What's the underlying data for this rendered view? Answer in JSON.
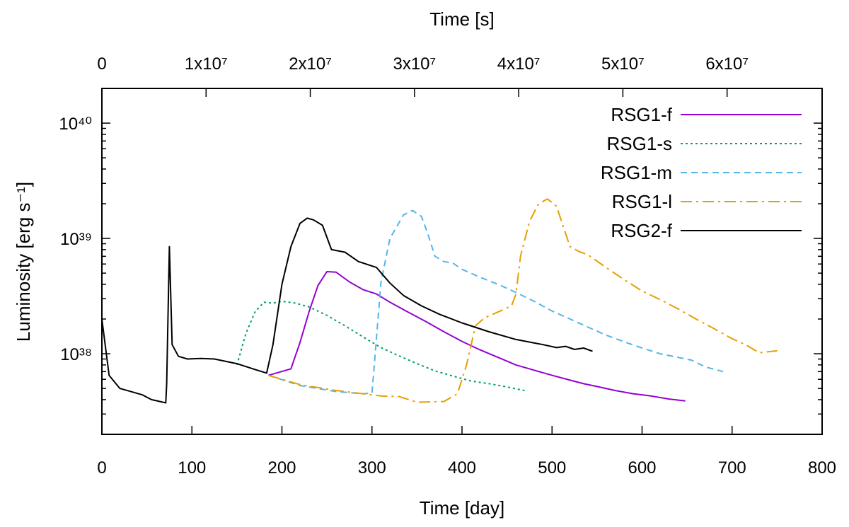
{
  "chart_data": {
    "type": "line",
    "xlabel": "Time [day]",
    "ylabel": "Luminosity [erg s⁻¹]",
    "x2label": "Time [s]",
    "xlim": [
      0,
      800
    ],
    "ylim": [
      2e+37,
      2e+40
    ],
    "yscale": "log",
    "x_ticks": [
      0,
      100,
      200,
      300,
      400,
      500,
      600,
      700,
      800
    ],
    "x_tick_labels": [
      "0",
      "100",
      "200",
      "300",
      "400",
      "500",
      "600",
      "700",
      "800"
    ],
    "x2_ticks": [
      0,
      10000000,
      20000000,
      30000000,
      40000000,
      50000000,
      60000000
    ],
    "x2_tick_labels": [
      "0",
      "1x10⁷",
      "2x10⁷",
      "3x10⁷",
      "4x10⁷",
      "5x10⁷",
      "6x10⁷"
    ],
    "y_ticks": [
      1e+38,
      1e+39,
      1e+40
    ],
    "y_tick_labels": [
      "10³⁸",
      "10³⁹",
      "10⁴⁰"
    ],
    "grid": false,
    "legend_position": "top-right",
    "series": [
      {
        "name": "RSG1-f",
        "color": "#9400d3",
        "dash": "solid",
        "points": [
          [
            185,
            6.5e+37
          ],
          [
            210,
            7.4e+37
          ],
          [
            220,
            1.25e+38
          ],
          [
            230,
            2.3e+38
          ],
          [
            240,
            3.9e+38
          ],
          [
            250,
            5.15e+38
          ],
          [
            260,
            5.1e+38
          ],
          [
            275,
            4.2e+38
          ],
          [
            290,
            3.6e+38
          ],
          [
            305,
            3.3e+38
          ],
          [
            320,
            2.8e+38
          ],
          [
            340,
            2.3e+38
          ],
          [
            360,
            1.9e+38
          ],
          [
            380,
            1.55e+38
          ],
          [
            400,
            1.28e+38
          ],
          [
            420,
            1.08e+38
          ],
          [
            440,
            9.3e+37
          ],
          [
            460,
            8e+37
          ],
          [
            480,
            7.2e+37
          ],
          [
            500,
            6.5e+37
          ],
          [
            520,
            5.9e+37
          ],
          [
            535,
            5.5e+37
          ],
          [
            550,
            5.2e+37
          ],
          [
            570,
            4.8e+37
          ],
          [
            590,
            4.5e+37
          ],
          [
            610,
            4.3e+37
          ],
          [
            630,
            4.05e+37
          ],
          [
            648,
            3.9e+37
          ]
        ]
      },
      {
        "name": "RSG1-s",
        "color": "#009e73",
        "dash": "dotted",
        "points": [
          [
            150,
            8e+37
          ],
          [
            160,
            1.5e+38
          ],
          [
            170,
            2.3e+38
          ],
          [
            180,
            2.8e+38
          ],
          [
            190,
            2.75e+38
          ],
          [
            200,
            2.85e+38
          ],
          [
            215,
            2.75e+38
          ],
          [
            230,
            2.55e+38
          ],
          [
            250,
            2.15e+38
          ],
          [
            270,
            1.75e+38
          ],
          [
            290,
            1.4e+38
          ],
          [
            310,
            1.13e+38
          ],
          [
            330,
            9.6e+37
          ],
          [
            350,
            8.2e+37
          ],
          [
            370,
            7.1e+37
          ],
          [
            390,
            6.4e+37
          ],
          [
            410,
            5.8e+37
          ],
          [
            430,
            5.5e+37
          ],
          [
            450,
            5.15e+37
          ],
          [
            472,
            4.75e+37
          ]
        ]
      },
      {
        "name": "RSG1-m",
        "color": "#56b4e9",
        "dash": "dashed",
        "points": [
          [
            185,
            6.5e+37
          ],
          [
            220,
            5.3e+37
          ],
          [
            260,
            4.7e+37
          ],
          [
            290,
            4.5e+37
          ],
          [
            300,
            4.55e+37
          ],
          [
            310,
            4.2e+38
          ],
          [
            320,
            1e+39
          ],
          [
            335,
            1.6e+39
          ],
          [
            345,
            1.75e+39
          ],
          [
            355,
            1.55e+39
          ],
          [
            362,
            1.1e+39
          ],
          [
            370,
            7e+38
          ],
          [
            380,
            6.3e+38
          ],
          [
            390,
            6.1e+38
          ],
          [
            400,
            5.4e+38
          ],
          [
            420,
            4.6e+38
          ],
          [
            440,
            4e+38
          ],
          [
            460,
            3.4e+38
          ],
          [
            480,
            2.85e+38
          ],
          [
            500,
            2.35e+38
          ],
          [
            520,
            2e+38
          ],
          [
            540,
            1.7e+38
          ],
          [
            560,
            1.45e+38
          ],
          [
            580,
            1.27e+38
          ],
          [
            600,
            1.12e+38
          ],
          [
            620,
            1e+38
          ],
          [
            640,
            9.3e+37
          ],
          [
            655,
            8.8e+37
          ],
          [
            670,
            7.7e+37
          ],
          [
            690,
            7e+37
          ]
        ]
      },
      {
        "name": "RSG1-l",
        "color": "#e69f00",
        "dash": "dashdot",
        "points": [
          [
            185,
            6.5e+37
          ],
          [
            220,
            5.4e+37
          ],
          [
            260,
            4.8e+37
          ],
          [
            290,
            4.5e+37
          ],
          [
            310,
            4.3e+37
          ],
          [
            330,
            4.25e+37
          ],
          [
            350,
            3.8e+37
          ],
          [
            380,
            3.85e+37
          ],
          [
            395,
            4.5e+37
          ],
          [
            405,
            8e+37
          ],
          [
            415,
            1.75e+38
          ],
          [
            425,
            2.05e+38
          ],
          [
            440,
            2.3e+38
          ],
          [
            455,
            2.6e+38
          ],
          [
            460,
            3.3e+38
          ],
          [
            465,
            7e+38
          ],
          [
            475,
            1.4e+39
          ],
          [
            485,
            2e+39
          ],
          [
            495,
            2.2e+39
          ],
          [
            505,
            1.9e+39
          ],
          [
            512,
            1.3e+39
          ],
          [
            520,
            8.5e+38
          ],
          [
            530,
            7.7e+38
          ],
          [
            540,
            7.2e+38
          ],
          [
            560,
            5.6e+38
          ],
          [
            580,
            4.4e+38
          ],
          [
            600,
            3.5e+38
          ],
          [
            620,
            2.95e+38
          ],
          [
            640,
            2.45e+38
          ],
          [
            660,
            2e+38
          ],
          [
            680,
            1.65e+38
          ],
          [
            700,
            1.35e+38
          ],
          [
            715,
            1.2e+38
          ],
          [
            730,
            1.02e+38
          ],
          [
            750,
            1.06e+38
          ]
        ]
      },
      {
        "name": "RSG2-f",
        "color": "#000000",
        "dash": "solid",
        "points": [
          [
            0,
            2e+38
          ],
          [
            8,
            6.5e+37
          ],
          [
            20,
            5e+37
          ],
          [
            45,
            4.4e+37
          ],
          [
            55,
            4e+37
          ],
          [
            68,
            3.8e+37
          ],
          [
            71,
            3.75e+37
          ],
          [
            72,
            5.5e+37
          ],
          [
            75,
            8.5e+38
          ],
          [
            78,
            1.2e+38
          ],
          [
            85,
            9.5e+37
          ],
          [
            95,
            9e+37
          ],
          [
            110,
            9.1e+37
          ],
          [
            125,
            9e+37
          ],
          [
            150,
            8.2e+37
          ],
          [
            170,
            7.3e+37
          ],
          [
            183,
            6.8e+37
          ],
          [
            190,
            1.2e+38
          ],
          [
            200,
            4e+38
          ],
          [
            210,
            8.5e+38
          ],
          [
            220,
            1.35e+39
          ],
          [
            228,
            1.5e+39
          ],
          [
            235,
            1.45e+39
          ],
          [
            245,
            1.3e+39
          ],
          [
            255,
            8e+38
          ],
          [
            270,
            7.6e+38
          ],
          [
            285,
            6.3e+38
          ],
          [
            305,
            5.6e+38
          ],
          [
            320,
            4.1e+38
          ],
          [
            335,
            3.2e+38
          ],
          [
            355,
            2.6e+38
          ],
          [
            375,
            2.2e+38
          ],
          [
            400,
            1.85e+38
          ],
          [
            430,
            1.55e+38
          ],
          [
            460,
            1.33e+38
          ],
          [
            490,
            1.2e+38
          ],
          [
            505,
            1.13e+38
          ],
          [
            515,
            1.16e+38
          ],
          [
            525,
            1.09e+38
          ],
          [
            535,
            1.12e+38
          ],
          [
            545,
            1.05e+38
          ]
        ]
      }
    ]
  }
}
